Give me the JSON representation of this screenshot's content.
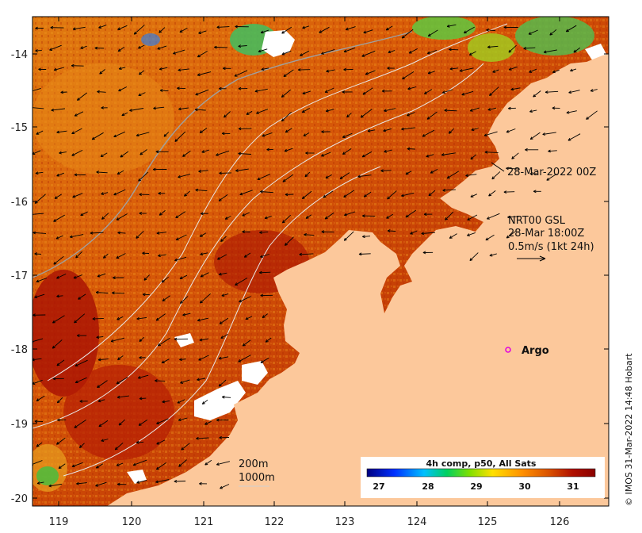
{
  "map": {
    "lon_ticks": [
      "119",
      "120",
      "121",
      "122",
      "123",
      "124",
      "125",
      "126"
    ],
    "lat_ticks": [
      "-14",
      "-15",
      "-16",
      "-17",
      "-18",
      "-19",
      "-20"
    ],
    "land_color": "#fcc89b",
    "sst_palette": [
      "#0b0080",
      "#0050ff",
      "#00c8ff",
      "#00d080",
      "#40d000",
      "#e0e000",
      "#ffa000",
      "#e06000",
      "#c83000",
      "#a00000"
    ]
  },
  "annotations": {
    "timestamp": "28-Mar-2022 00Z",
    "current_source": "NRT00 GSL",
    "current_time": "28-Mar 18:00Z",
    "current_scale": "0.5m/s (1kt 24h)",
    "contour_200": "200m",
    "contour_1000": "1000m"
  },
  "argo": {
    "label": "Argo",
    "marker_color": "#e000e0"
  },
  "colorbar": {
    "title": "4h comp, p50, All Sats",
    "ticks": [
      "27",
      "28",
      "29",
      "30",
      "31"
    ],
    "stops": [
      "#000080",
      "#0030ff",
      "#00c0ff",
      "#00d060",
      "#80e000",
      "#ffe000",
      "#ff9000",
      "#d85000",
      "#b01000",
      "#8a0000"
    ]
  },
  "credit": "© IMOS 31-Mar-2022 14:48 Hobart"
}
